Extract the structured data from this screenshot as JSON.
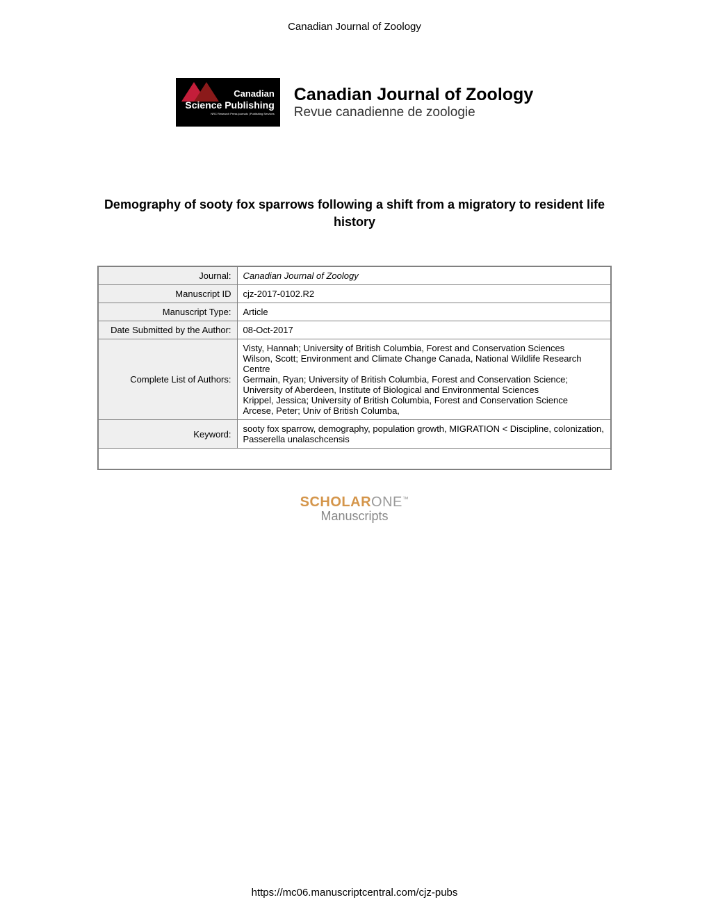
{
  "page_header": "Canadian Journal of Zoology",
  "publisher": {
    "name": "Canadian",
    "subname": "Science Publishing",
    "tagline": "NRC Research Press journals | Publishing Services"
  },
  "journal": {
    "title": "Canadian Journal of Zoology",
    "subtitle": "Revue canadienne de zoologie"
  },
  "article_title": "Demography of sooty fox sparrows following a shift from a migratory to resident life history",
  "metadata": {
    "rows": [
      {
        "label": "Journal:",
        "value": "Canadian Journal of Zoology",
        "italic": true
      },
      {
        "label": "Manuscript ID",
        "value": "cjz-2017-0102.R2"
      },
      {
        "label": "Manuscript Type:",
        "value": "Article"
      },
      {
        "label": "Date Submitted by the Author:",
        "value": "08-Oct-2017"
      },
      {
        "label": "Complete List of Authors:",
        "value": "Visty, Hannah; University of British Columbia, Forest and Conservation Sciences\nWilson, Scott; Environment and Climate Change Canada, National Wildlife Research Centre\nGermain, Ryan; University of British Columbia, Forest and Conservation Science; University of Aberdeen, Institute of Biological and Environmental Sciences\nKrippel, Jessica; University of British Columbia, Forest and Conservation Science\nArcese, Peter; Univ of British Columba,"
      },
      {
        "label": "Keyword:",
        "value": "sooty fox sparrow, demography, population growth, MIGRATION < Discipline, colonization, Passerella unalaschcensis"
      }
    ]
  },
  "scholarone": {
    "part1": "SCHOLAR",
    "part2": "ONE",
    "tm": "™",
    "subtitle": "Manuscripts"
  },
  "footer_url": "https://mc06.manuscriptcentral.com/cjz-pubs",
  "colors": {
    "page_bg": "#ffffff",
    "logo_bg": "#000000",
    "logo_red1": "#c41e3a",
    "logo_red2": "#8b1a1a",
    "table_border": "#808080",
    "table_label_bg": "#efefef",
    "scholar_color": "#d4954a",
    "one_color": "#999999"
  }
}
